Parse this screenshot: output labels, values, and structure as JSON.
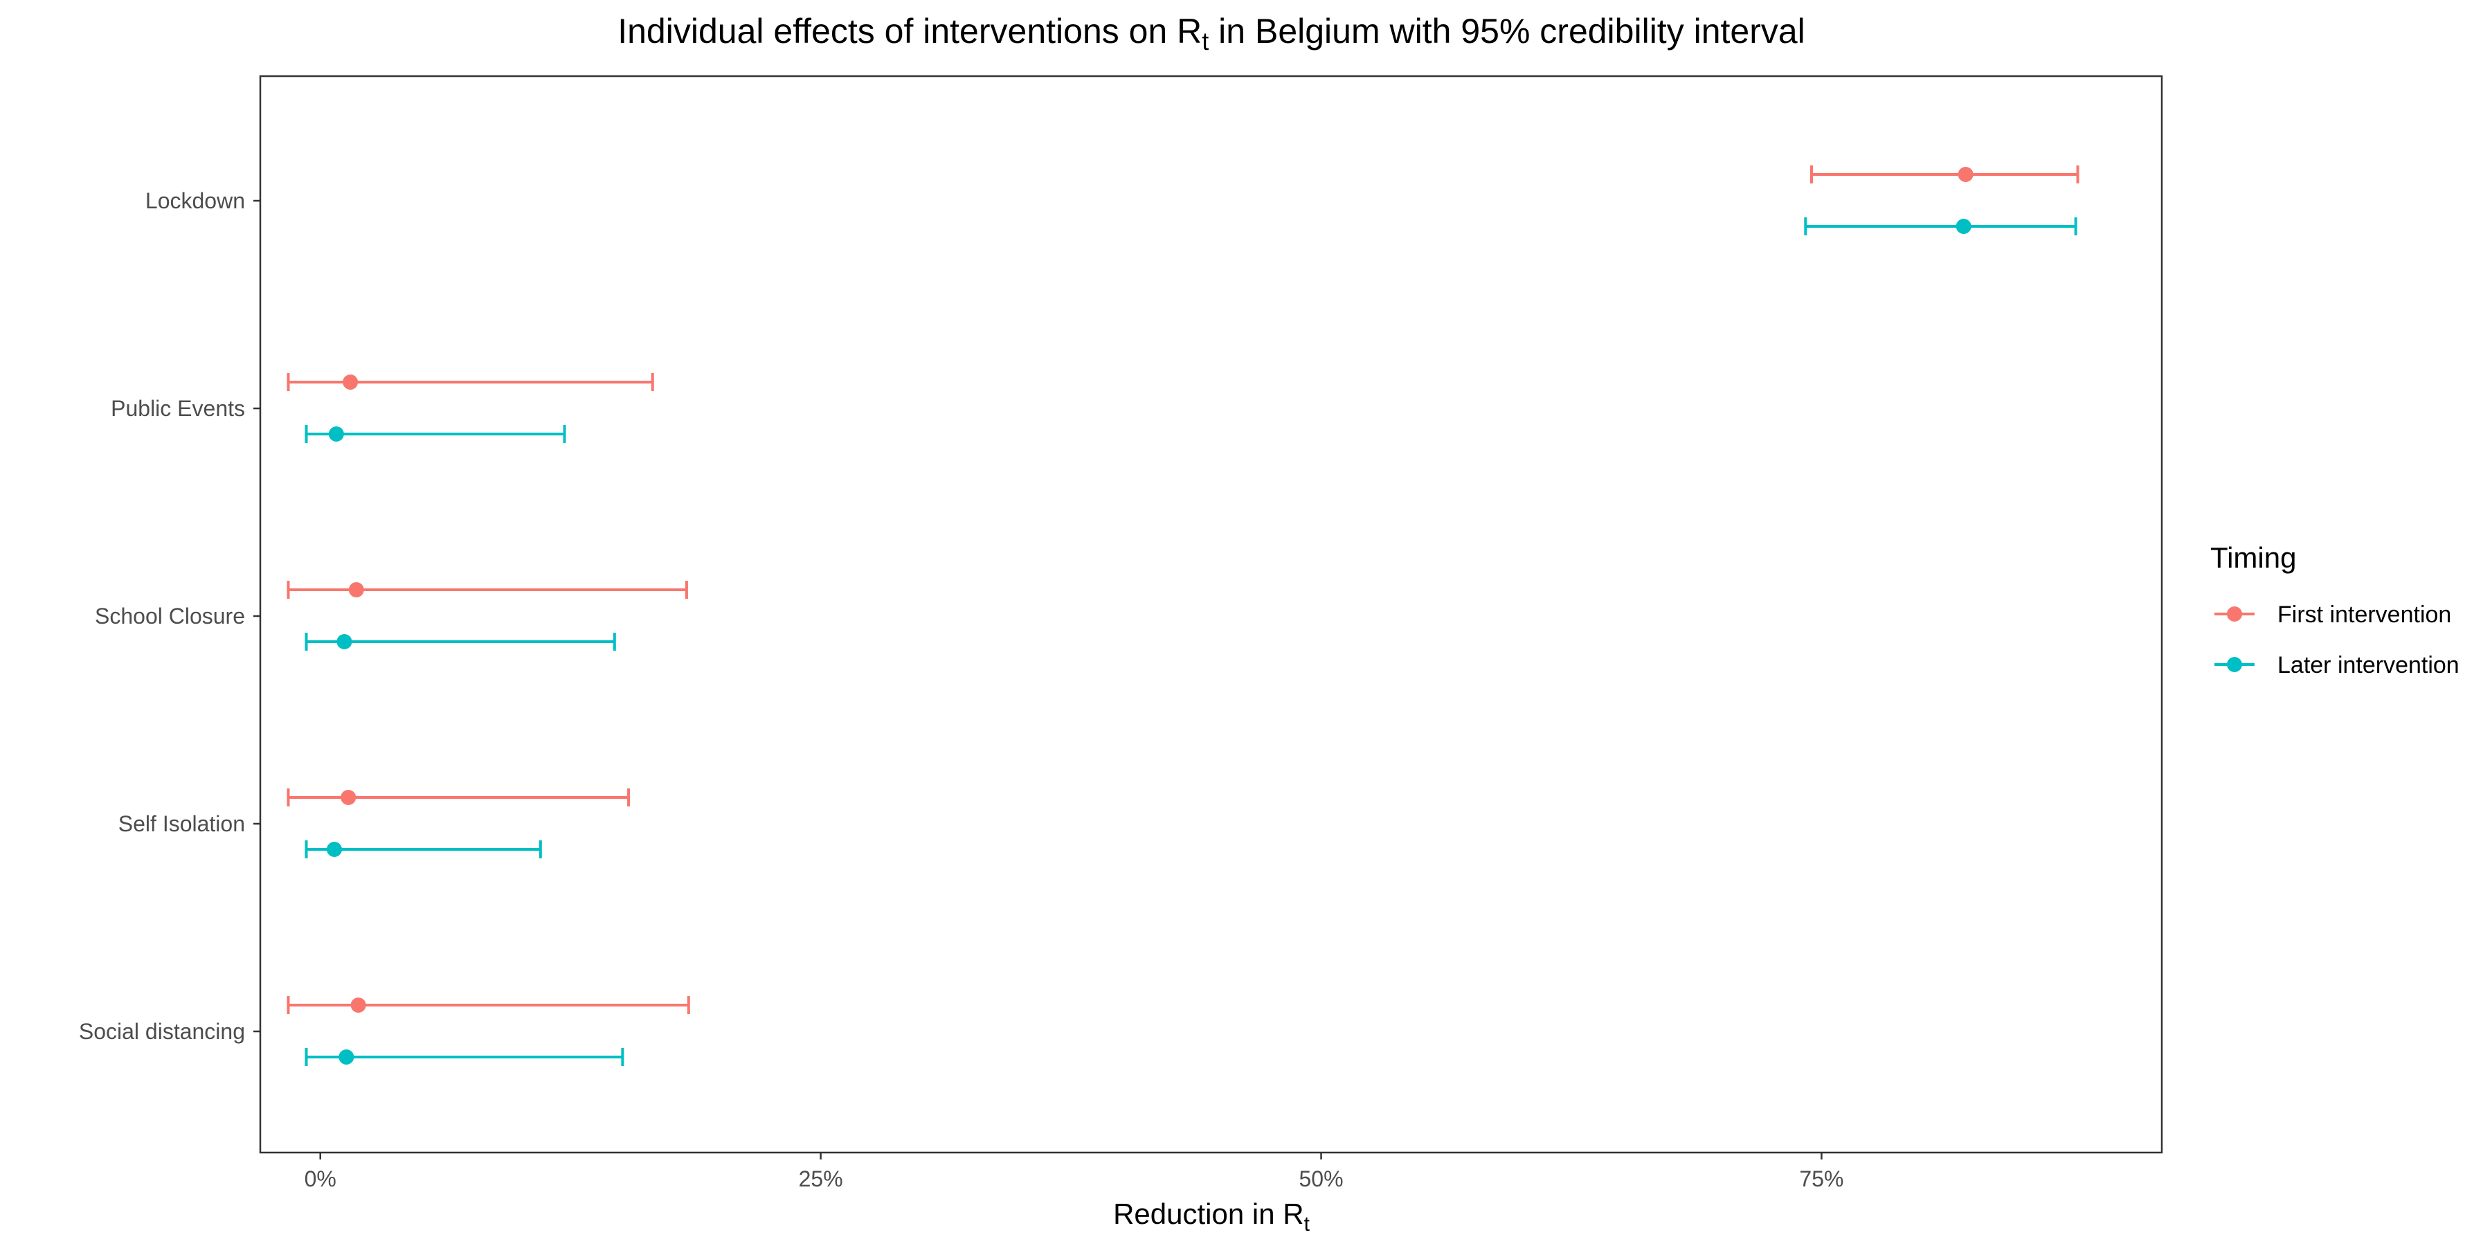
{
  "chart_data": {
    "type": "errorbar",
    "title": {
      "prefix": "Individual effects of interventions on ",
      "rt_main": "R",
      "rt_sub": "t",
      "country_prefix": " in ",
      "country": "Belgium",
      "suffix": " with 95% credibility interval"
    },
    "xlabel": {
      "prefix": "Reduction in ",
      "rt_main": "R",
      "rt_sub": "t"
    },
    "xlim": [
      -0.03,
      0.92
    ],
    "xticks": [
      {
        "value": 0,
        "label": "0%"
      },
      {
        "value": 0.25,
        "label": "25%"
      },
      {
        "value": 0.5,
        "label": "50%"
      },
      {
        "value": 0.75,
        "label": "75%"
      }
    ],
    "categories": [
      "Lockdown",
      "Public Events",
      "School Closure",
      "Self Isolation",
      "Social distancing"
    ],
    "legend": {
      "title": "Timing",
      "position": "right"
    },
    "series": [
      {
        "name": "First intervention",
        "color": "#F8766D",
        "points": [
          {
            "category": "Lockdown",
            "estimate": 0.822,
            "lower": 0.745,
            "upper": 0.878
          },
          {
            "category": "Public Events",
            "estimate": 0.015,
            "lower": -0.016,
            "upper": 0.166
          },
          {
            "category": "School Closure",
            "estimate": 0.018,
            "lower": -0.016,
            "upper": 0.183
          },
          {
            "category": "Self Isolation",
            "estimate": 0.014,
            "lower": -0.016,
            "upper": 0.154
          },
          {
            "category": "Social distancing",
            "estimate": 0.019,
            "lower": -0.016,
            "upper": 0.184
          }
        ]
      },
      {
        "name": "Later intervention",
        "color": "#00BFC4",
        "points": [
          {
            "category": "Lockdown",
            "estimate": 0.821,
            "lower": 0.742,
            "upper": 0.877
          },
          {
            "category": "Public Events",
            "estimate": 0.008,
            "lower": -0.007,
            "upper": 0.122
          },
          {
            "category": "School Closure",
            "estimate": 0.012,
            "lower": -0.007,
            "upper": 0.147
          },
          {
            "category": "Self Isolation",
            "estimate": 0.007,
            "lower": -0.007,
            "upper": 0.11
          },
          {
            "category": "Social distancing",
            "estimate": 0.013,
            "lower": -0.007,
            "upper": 0.151
          }
        ]
      }
    ]
  }
}
